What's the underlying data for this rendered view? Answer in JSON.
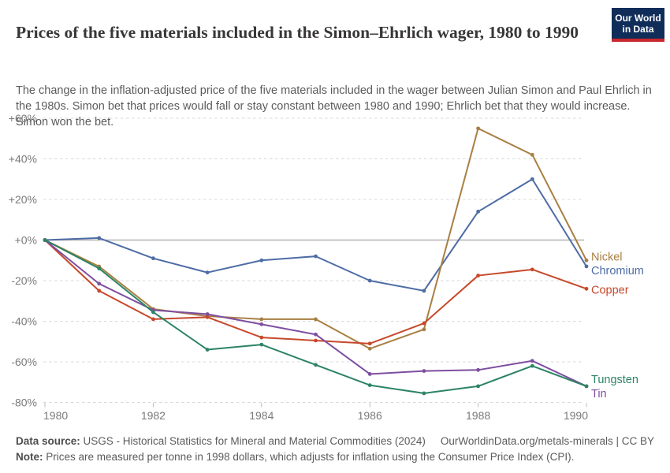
{
  "header": {
    "title": "Prices of the five materials included in the Simon–Ehrlich wager, 1980 to 1990",
    "logo": {
      "line1": "Our World",
      "line2": "in Data",
      "bg_color": "#102d5a",
      "bar_color": "#c8262c"
    }
  },
  "subtitle": "The change in the inflation-adjusted price of the five materials included in the wager between Julian Simon and Paul Ehrlich in the 1980s. Simon bet that prices would fall or stay constant between 1980 and 1990; Ehrlich bet that they would increase. Simon won the bet.",
  "chart_data": {
    "type": "line",
    "title": "Prices of the five materials included in the Simon–Ehrlich wager, 1980 to 1990",
    "unit": "%",
    "x": [
      1980,
      1981,
      1982,
      1983,
      1984,
      1985,
      1986,
      1987,
      1988,
      1989,
      1990
    ],
    "x_tick_labels": [
      "1980",
      "1982",
      "1984",
      "1986",
      "1988",
      "1990"
    ],
    "y_ticks": [
      60,
      40,
      20,
      0,
      -20,
      -40,
      -60,
      -80
    ],
    "y_tick_labels": [
      "+60%",
      "+40%",
      "+20%",
      "+0%",
      "-20%",
      "-40%",
      "-60%",
      "-80%"
    ],
    "ylim": [
      -80,
      60
    ],
    "grid": "horizontal-dashed",
    "zero_line": true,
    "legend_position": "labels-at-line-ends",
    "series": [
      {
        "name": "Chromium",
        "color": "#4e6ca5",
        "label_dy": 5,
        "values": [
          0,
          1,
          -9,
          -16,
          -10,
          -8,
          -20,
          -25,
          14,
          30,
          -13
        ]
      },
      {
        "name": "Nickel",
        "color": "#a87f43",
        "label_dy": -5,
        "values": [
          0,
          -13,
          -34,
          -37.5,
          -39,
          -39,
          -53.5,
          -44,
          55,
          42,
          -10
        ]
      },
      {
        "name": "Copper",
        "color": "#c7492b",
        "label_dy": 1,
        "values": [
          0,
          -25,
          -39,
          -38,
          -48,
          -49.5,
          -51,
          -41,
          -17.5,
          -14.5,
          -24
        ]
      },
      {
        "name": "Tin",
        "color": "#7e4ea0",
        "label_dy": 9,
        "values": [
          0,
          -21.5,
          -34.5,
          -36.5,
          -41.5,
          -46.5,
          -66,
          -64.5,
          -64,
          -59.5,
          -72
        ]
      },
      {
        "name": "Tungsten",
        "color": "#2c8465",
        "label_dy": -9,
        "values": [
          0,
          -14,
          -35.5,
          -54,
          -51.5,
          -61.5,
          -71.5,
          -75.5,
          -72,
          -62,
          -72
        ]
      }
    ]
  },
  "footer": {
    "source_label": "Data source:",
    "source_text": " USGS - Historical Statistics for Mineral and Material Commodities (2024)",
    "credit": "OurWorldinData.org/metals-minerals | CC BY",
    "note_label": "Note:",
    "note_text": " Prices are measured per tonne in 1998 dollars, which adjusts for inflation using the Consumer Price Index (CPI)."
  }
}
